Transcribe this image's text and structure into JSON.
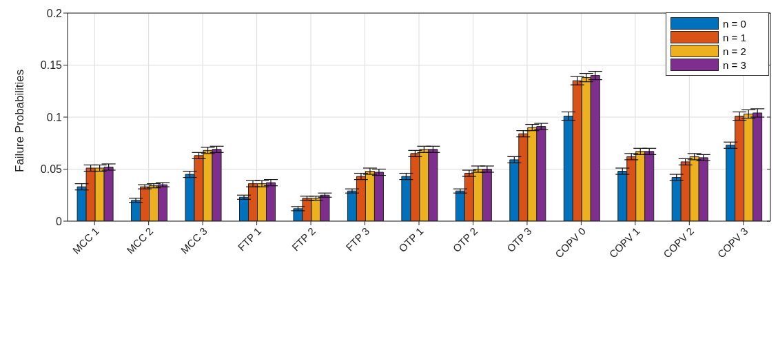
{
  "chart_data": {
    "type": "bar",
    "ylabel": "Failure Probabilities",
    "categories": [
      "MCC 1",
      "MCC 2",
      "MCC 3",
      "FTP 1",
      "FTP 2",
      "FTP 3",
      "OTP 1",
      "OTP 2",
      "OTP 3",
      "COPV 0",
      "COPV 1",
      "COPV 2",
      "COPV 3"
    ],
    "series": [
      {
        "name": "n = 0",
        "color": "#0072bd",
        "values": [
          0.033,
          0.02,
          0.045,
          0.023,
          0.012,
          0.029,
          0.043,
          0.029,
          0.059,
          0.101,
          0.048,
          0.042,
          0.073
        ],
        "errors": [
          0.003,
          0.002,
          0.003,
          0.002,
          0.002,
          0.002,
          0.003,
          0.002,
          0.003,
          0.004,
          0.003,
          0.003,
          0.003
        ]
      },
      {
        "name": "n = 1",
        "color": "#d95319",
        "values": [
          0.051,
          0.033,
          0.063,
          0.036,
          0.022,
          0.043,
          0.065,
          0.046,
          0.084,
          0.135,
          0.062,
          0.057,
          0.101
        ],
        "errors": [
          0.003,
          0.002,
          0.003,
          0.003,
          0.002,
          0.003,
          0.003,
          0.003,
          0.003,
          0.004,
          0.003,
          0.003,
          0.004
        ]
      },
      {
        "name": "n = 2",
        "color": "#edb120",
        "values": [
          0.051,
          0.034,
          0.068,
          0.036,
          0.022,
          0.048,
          0.069,
          0.05,
          0.09,
          0.138,
          0.067,
          0.062,
          0.103
        ],
        "errors": [
          0.003,
          0.002,
          0.003,
          0.003,
          0.002,
          0.003,
          0.003,
          0.003,
          0.003,
          0.004,
          0.003,
          0.003,
          0.004
        ]
      },
      {
        "name": "n = 3",
        "color": "#7e2f8e",
        "values": [
          0.052,
          0.035,
          0.069,
          0.037,
          0.025,
          0.047,
          0.069,
          0.05,
          0.091,
          0.14,
          0.067,
          0.061,
          0.104
        ],
        "errors": [
          0.003,
          0.002,
          0.003,
          0.003,
          0.002,
          0.003,
          0.003,
          0.003,
          0.003,
          0.004,
          0.003,
          0.003,
          0.004
        ]
      }
    ],
    "ylim": [
      0,
      0.2
    ],
    "yticks": [
      0,
      0.05,
      0.1,
      0.15,
      0.2
    ],
    "grid": true,
    "legend": "top right"
  }
}
